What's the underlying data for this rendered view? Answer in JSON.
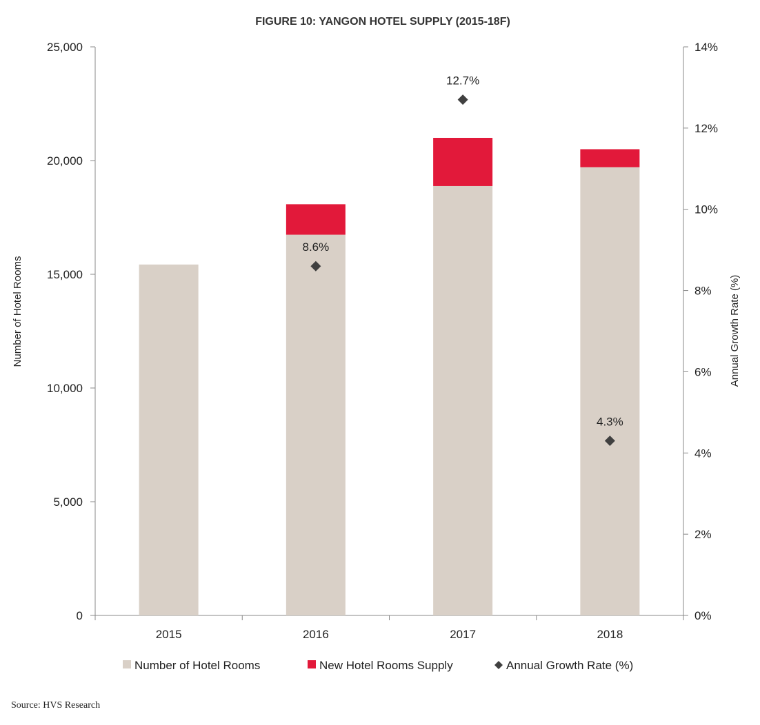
{
  "chart_data": {
    "type": "bar",
    "title": "FIGURE 10: YANGON HOTEL SUPPLY (2015-18F)",
    "categories": [
      "2015",
      "2016",
      "2017",
      "2018"
    ],
    "series": [
      {
        "name": "Number of Hotel Rooms",
        "axis": "left",
        "stack": "rooms",
        "values": [
          15430,
          16740,
          18880,
          19710
        ],
        "color": "#d9d0c7"
      },
      {
        "name": "New Hotel Rooms Supply",
        "axis": "left",
        "stack": "rooms",
        "values": [
          0,
          1340,
          2120,
          790
        ],
        "color": "#e2193a"
      },
      {
        "name": "Annual Growth Rate (%)",
        "axis": "right",
        "kind": "marker",
        "values": [
          null,
          8.6,
          12.7,
          4.3
        ],
        "labels": [
          "",
          "8.6%",
          "12.7%",
          "4.3%"
        ],
        "color": "#404040"
      }
    ],
    "ylabel": "Number of Hotel Rooms",
    "ylim": [
      0,
      25000
    ],
    "yticks": [
      0,
      5000,
      10000,
      15000,
      20000,
      25000
    ],
    "ytick_labels": [
      "0",
      "5,000",
      "10,000",
      "15,000",
      "20,000",
      "25,000"
    ],
    "y2label": "Annual Growth Rate (%)",
    "y2lim": [
      0,
      14
    ],
    "y2ticks": [
      0,
      2,
      4,
      6,
      8,
      10,
      12,
      14
    ],
    "y2tick_labels": [
      "0%",
      "2%",
      "4%",
      "6%",
      "8%",
      "10%",
      "12%",
      "14%"
    ],
    "grid": false,
    "legend": {
      "position": "bottom",
      "entries": [
        "Number of Hotel Rooms",
        "New Hotel Rooms Supply",
        "Annual Growth Rate (%)"
      ]
    }
  },
  "source": "Source: HVS Research"
}
